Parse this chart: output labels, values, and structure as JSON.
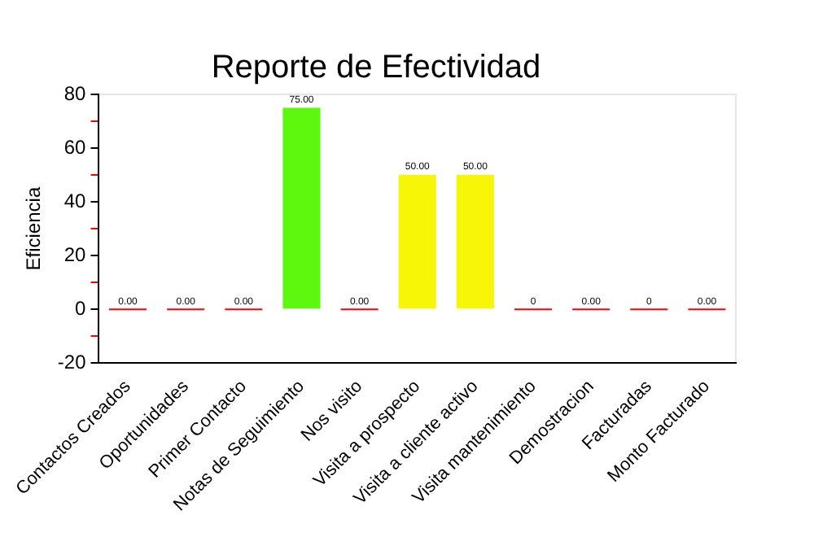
{
  "chart_data": {
    "type": "bar",
    "title": "Reporte de Efectividad",
    "ylabel": "Eficiencia",
    "categories": [
      "Contactos Creados",
      "Oportunidades",
      "Primer Contacto",
      "Notas de Seguimiento",
      "Nos visito",
      "Visita a prospecto",
      "Visita a cliente activo",
      "Visita mantenimiento",
      "Demostracion",
      "Facturadas",
      "Monto Facturado"
    ],
    "values": [
      0,
      0,
      0,
      75,
      0,
      50,
      50,
      0,
      0,
      0,
      0
    ],
    "value_labels": [
      "0.00",
      "0.00",
      "0.00",
      "75.00",
      "0.00",
      "50.00",
      "50.00",
      "0",
      "0.00",
      "0",
      "0.00"
    ],
    "colors": [
      "#ff0000",
      "#ff0000",
      "#ff0000",
      "#5cf80e",
      "#ff0000",
      "#f6f606",
      "#f6f606",
      "#ff0000",
      "#ff0000",
      "#ff0000",
      "#ff0000"
    ],
    "ylim": [
      -20,
      80
    ],
    "yticks": [
      -20,
      {
        "value": -10,
        "label": null
      },
      0,
      {
        "value": 10,
        "label": null
      },
      20,
      {
        "value": 30,
        "label": null
      },
      40,
      {
        "value": 50,
        "label": null
      },
      60,
      {
        "value": 70,
        "label": null
      },
      80
    ],
    "grid": false,
    "legend": false
  }
}
